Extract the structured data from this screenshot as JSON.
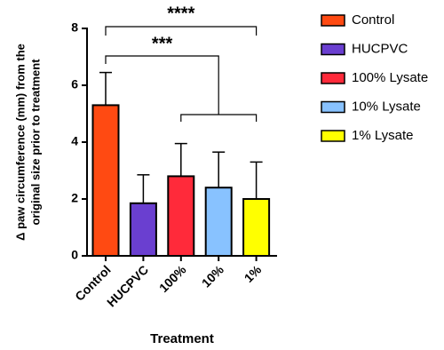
{
  "chart_data": {
    "type": "bar",
    "x_label": "Treatment",
    "y_label": [
      "Δ paw circumference (mm) from the",
      "original size prior to treatment"
    ],
    "categories": [
      "Control",
      "HUCPVC",
      "100%",
      "10%",
      "1%"
    ],
    "values": [
      5.3,
      1.85,
      2.8,
      2.4,
      2.0
    ],
    "errors": [
      1.15,
      1.0,
      1.15,
      1.25,
      1.3
    ],
    "colors": [
      "#ff4a12",
      "#6a3fd0",
      "#ff2a3a",
      "#88c2ff",
      "#ffff00"
    ],
    "legend_labels": [
      "Control",
      "HUCPVC",
      "100% Lysate",
      "10% Lysate",
      "1% Lysate"
    ],
    "annotations": [
      "****",
      "***"
    ],
    "ylim": [
      0,
      8
    ],
    "yticks": [
      0,
      2,
      4,
      6,
      8
    ]
  }
}
